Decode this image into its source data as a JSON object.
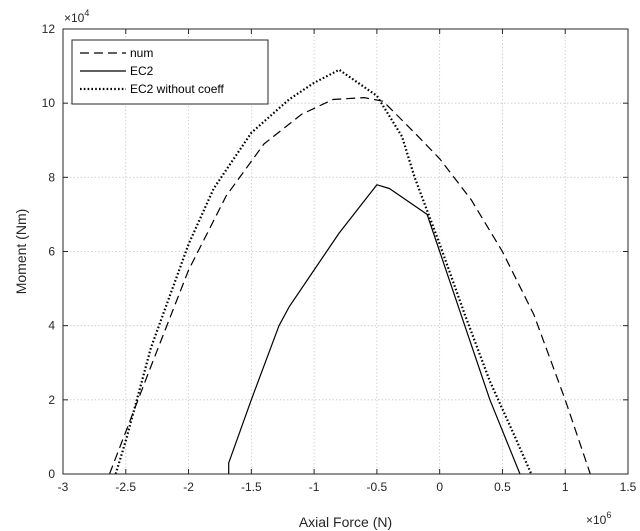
{
  "chart_data": {
    "type": "line",
    "title": "",
    "xlabel": "Axial Force (N)",
    "ylabel": "Moment (Nm)",
    "x_exponent": "×10",
    "x_exponent_power": "6",
    "y_exponent": "×10",
    "y_exponent_power": "4",
    "xlim": [
      -3,
      1.5
    ],
    "ylim": [
      0,
      12
    ],
    "xticks": [
      -3,
      -2.5,
      -2,
      -1.5,
      -1,
      -0.5,
      0,
      0.5,
      1,
      1.5
    ],
    "xtick_labels": [
      "-3",
      "-2.5",
      "-2",
      "-1.5",
      "-1",
      "-0.5",
      "0",
      "0.5",
      "1",
      "1.5"
    ],
    "yticks": [
      0,
      2,
      4,
      6,
      8,
      10,
      12
    ],
    "ytick_labels": [
      "0",
      "2",
      "4",
      "6",
      "8",
      "10",
      "12"
    ],
    "grid": true,
    "legend_position": "top-left",
    "series": [
      {
        "name": "num",
        "style": "dashed",
        "color": "#000000",
        "x": [
          -2.63,
          -2.3,
          -2.0,
          -1.7,
          -1.4,
          -1.1,
          -0.85,
          -0.6,
          -0.45,
          -0.2,
          0.0,
          0.25,
          0.5,
          0.75,
          1.0,
          1.2
        ],
        "y": [
          0,
          2.9,
          5.5,
          7.5,
          8.9,
          9.7,
          10.1,
          10.15,
          10.05,
          9.2,
          8.5,
          7.4,
          6.0,
          4.3,
          2.0,
          0
        ]
      },
      {
        "name": "EC2",
        "style": "solid",
        "color": "#000000",
        "x": [
          -1.68,
          -1.68,
          -1.5,
          -1.28,
          -1.2,
          -1.0,
          -0.8,
          -0.5,
          -0.4,
          -0.1,
          0.0,
          0.2,
          0.4,
          0.64
        ],
        "y": [
          0,
          0.3,
          2.0,
          4.0,
          4.5,
          5.5,
          6.5,
          7.8,
          7.7,
          7.0,
          6.0,
          4.0,
          2.0,
          0
        ]
      },
      {
        "name": "EC2 without coeff",
        "style": "dotted",
        "color": "#000000",
        "x": [
          -2.58,
          -2.5,
          -2.3,
          -2.0,
          -1.8,
          -1.5,
          -1.2,
          -1.0,
          -0.8,
          -0.5,
          -0.3,
          -0.2,
          0.0,
          0.2,
          0.4,
          0.6,
          0.73
        ],
        "y": [
          0,
          0.9,
          3.4,
          6.2,
          7.7,
          9.2,
          10.1,
          10.55,
          10.9,
          10.2,
          9.1,
          8.0,
          6.2,
          4.3,
          2.5,
          1.0,
          0
        ]
      }
    ]
  }
}
